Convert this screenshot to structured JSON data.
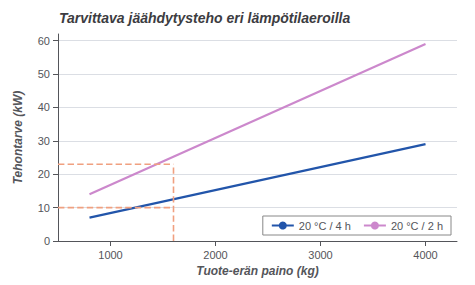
{
  "chart_data": {
    "type": "line",
    "title": "Tarvittava jäähdytysteho eri lämpötilaeroilla",
    "x_label": "Tuote-erän paino (kg)",
    "y_label": "Tehontarve (kW)",
    "xlim": [
      500,
      4300
    ],
    "ylim": [
      0,
      62
    ],
    "xticks": [
      1000,
      2000,
      3000,
      4000
    ],
    "yticks": [
      0,
      10,
      20,
      30,
      40,
      50,
      60
    ],
    "grid": true,
    "legend": "lower right",
    "series": [
      {
        "name": "20 °C / 4 h",
        "color": "#2255aa",
        "x": [
          800,
          4000
        ],
        "values": [
          7,
          29
        ]
      },
      {
        "name": "20 °C / 2 h",
        "color": "#cc88cc",
        "x": [
          800,
          4000
        ],
        "values": [
          14,
          59
        ]
      },
      {
        "color": "#f0a080",
        "line_style": "dashed",
        "x": [
          500,
          1600
        ],
        "values": [
          23,
          23
        ]
      },
      {
        "color": "#f0a080",
        "line_style": "dashed",
        "x": [
          500,
          1600
        ],
        "values": [
          10,
          10
        ]
      },
      {
        "color": "#f0a080",
        "line_style": "dashed",
        "x": [
          1600,
          1600
        ],
        "values": [
          0,
          23
        ]
      }
    ]
  }
}
